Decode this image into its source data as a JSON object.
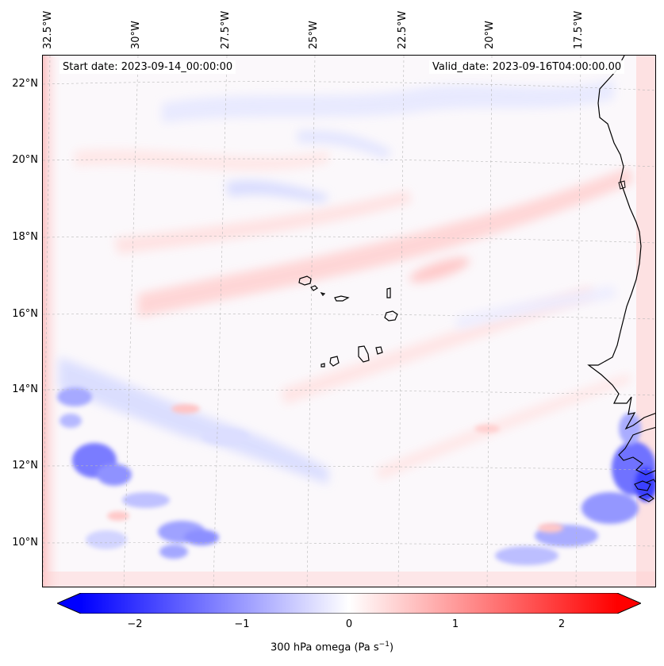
{
  "map": {
    "lon_ticks": [
      "32.5°W",
      "30°W",
      "27.5°W",
      "25°W",
      "22.5°W",
      "20°W",
      "17.5°W"
    ],
    "lat_ticks": [
      "22°N",
      "20°N",
      "18°N",
      "16°N",
      "14°N",
      "12°N",
      "10°N"
    ],
    "start_date": "Start date: 2023-09-14_00:00:00",
    "valid_date": "Valid_date: 2023-09-16T04:00:00.00",
    "field": "300 hPa omega",
    "colors": {
      "negative": "#0000ff",
      "zero": "#ffffff",
      "positive": "#ff0000",
      "coastline": "#000000"
    }
  },
  "colorbar": {
    "ticks": [
      "−2",
      "−1",
      "0",
      "1",
      "2"
    ],
    "label": "300 hPa omega (Pa s",
    "label_sup": "−1",
    "label_close": ")",
    "vmin": -2.6,
    "vmax": 2.6
  }
}
